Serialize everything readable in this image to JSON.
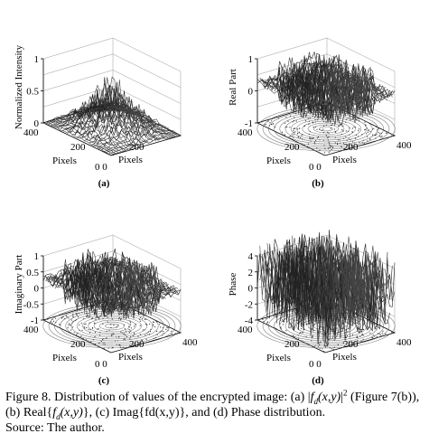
{
  "panels": [
    {
      "letter": "(a)",
      "zlabel": "Normalized Intensity",
      "z_ticks": [
        "1",
        "0.5",
        "0"
      ],
      "axis_ticks_back": "400",
      "axis_ticks_mid": "200",
      "axis_ticks_origin": "0 0",
      "axis_ticks_right": "",
      "xlabel": "Pixels",
      "ylabel": "Pixels",
      "surface": "intensity"
    },
    {
      "letter": "(b)",
      "zlabel": "Real Part",
      "z_ticks": [
        "1",
        "0",
        "-1"
      ],
      "axis_ticks_back": "400",
      "axis_ticks_mid": "200",
      "axis_ticks_origin": "0 0",
      "axis_ticks_right": "400",
      "xlabel": "Pixels",
      "ylabel": "Pixels",
      "surface": "signed"
    },
    {
      "letter": "(c)",
      "zlabel": "Imaginary Part",
      "z_ticks": [
        "1",
        "0.5",
        "0",
        "-0.5",
        "-1"
      ],
      "axis_ticks_back": "400",
      "axis_ticks_mid": "200",
      "axis_ticks_origin": "0 0",
      "axis_ticks_right": "400",
      "xlabel": "Pixels",
      "ylabel": "Pixels",
      "surface": "signed"
    },
    {
      "letter": "(d)",
      "zlabel": "Phase",
      "z_ticks": [
        "4",
        "2",
        "0",
        "-2",
        "-4"
      ],
      "axis_ticks_back": "400",
      "axis_ticks_mid": "200",
      "axis_ticks_origin": "0 0",
      "axis_ticks_right": "400",
      "xlabel": "Pixels",
      "ylabel": "Pixels",
      "surface": "phase"
    }
  ],
  "caption": {
    "figure_label": "Figure 8.",
    "text_1": " Distribution of values of the encrypted image: (a) |",
    "f": "f",
    "sub_d": "d",
    "xy": "(x,y)",
    "text_2": "|",
    "sup_2": "2",
    "text_3": " (Figure 7(b)), (b) Real{",
    "text_4": "}, (c) Imag{fd(x,y)}, and (d) Phase distribution.",
    "source": "Source: The author."
  }
}
